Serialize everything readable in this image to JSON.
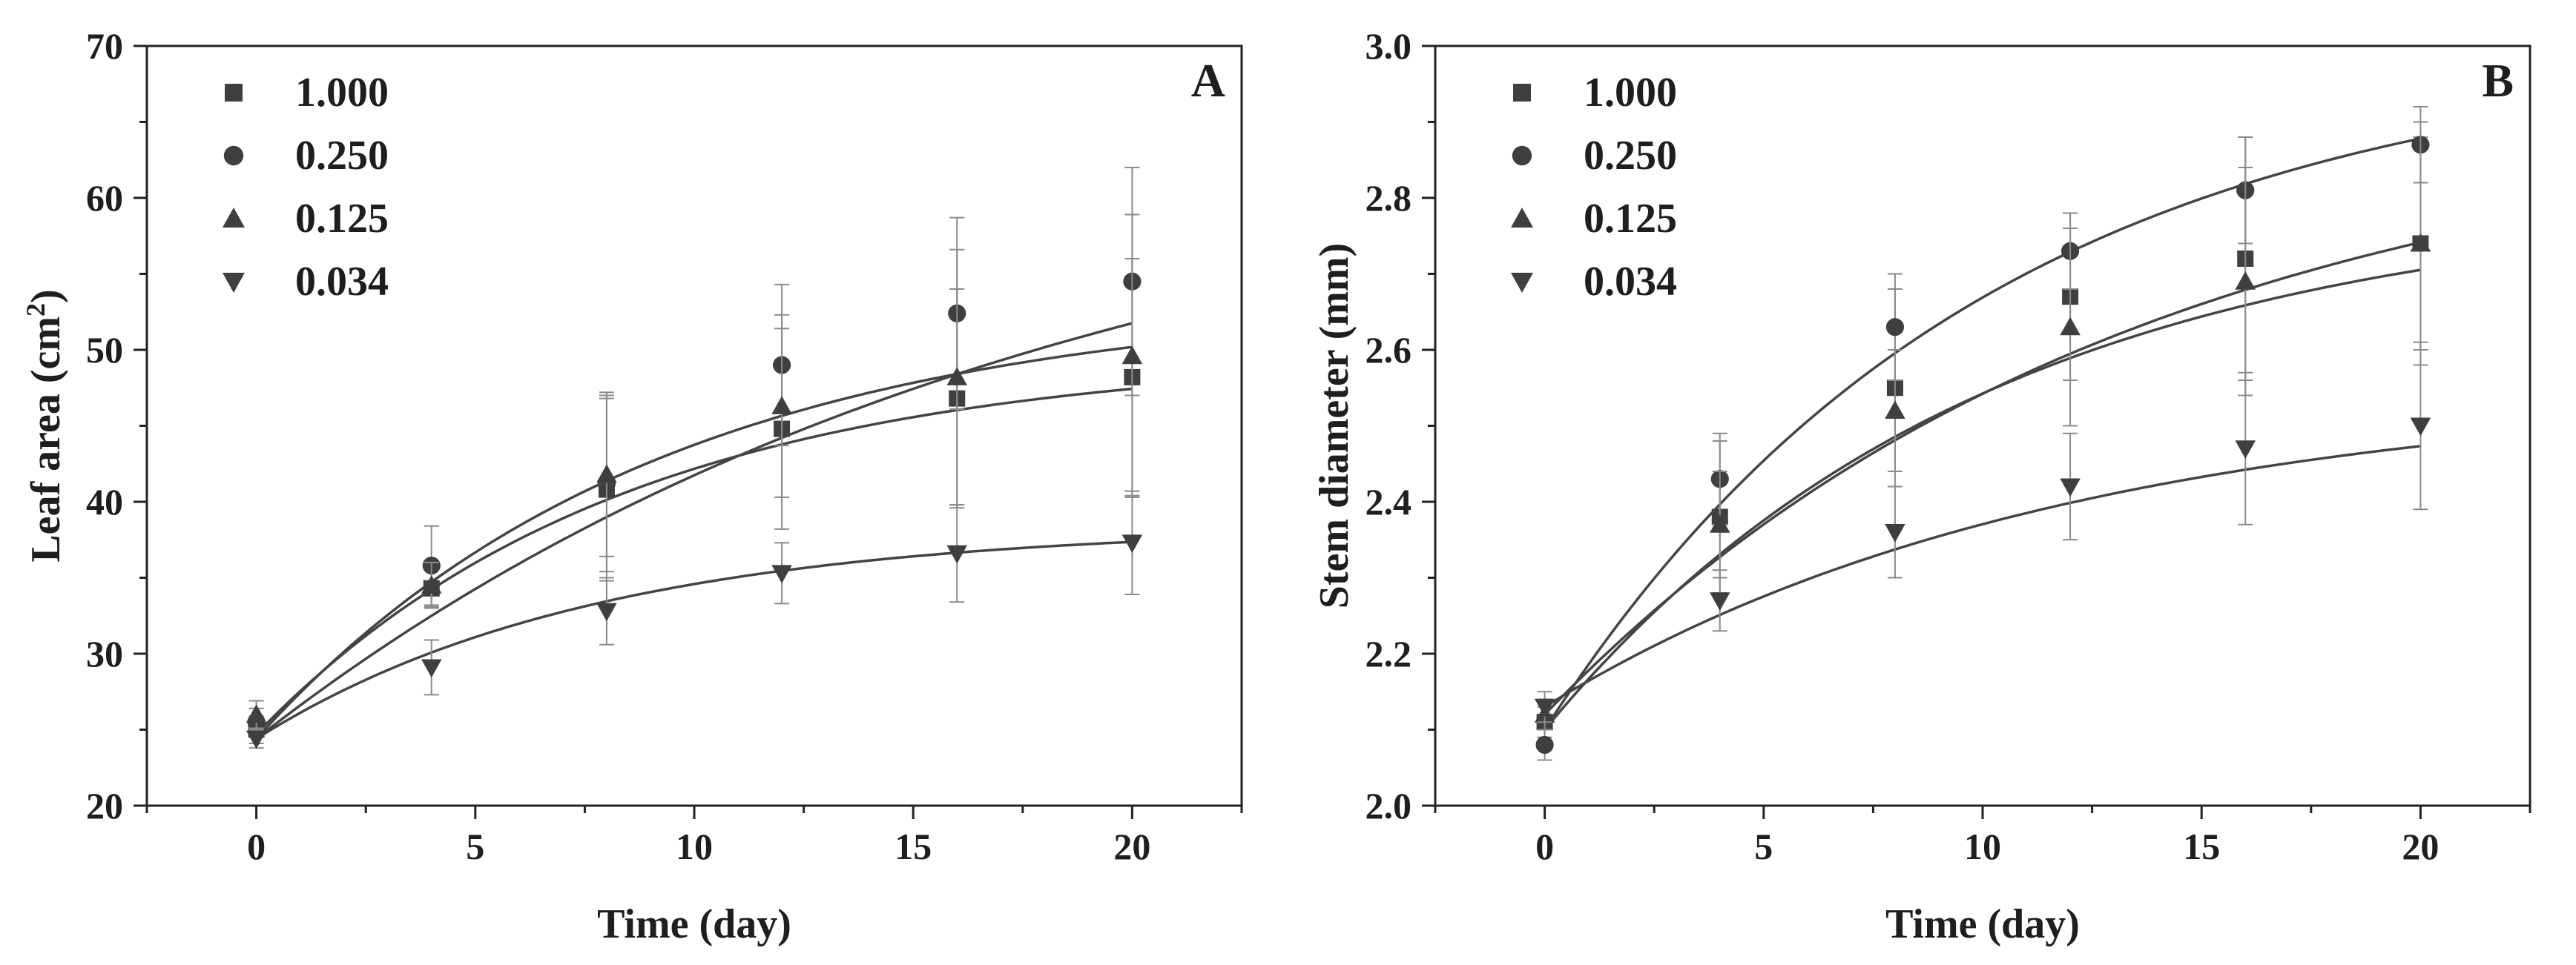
{
  "chart_data": [
    {
      "type": "scatter",
      "panel_label": "A",
      "xlabel": "Time (day)",
      "ylabel_main": "Leaf area (cm",
      "ylabel_sup": "2",
      "ylabel_end": ")",
      "xlim": [
        -2.5,
        22.5
      ],
      "ylim": [
        20,
        70
      ],
      "xticks": [
        0,
        5,
        10,
        15,
        20
      ],
      "xtick_labels": [
        "0",
        "5",
        "10",
        "15",
        "20"
      ],
      "yticks": [
        20,
        30,
        40,
        50,
        60,
        70
      ],
      "ytick_labels": [
        "20",
        "30",
        "40",
        "50",
        "60",
        "70"
      ],
      "legend_position": "top-left",
      "x": [
        0,
        4,
        8,
        12,
        16,
        20
      ],
      "series": [
        {
          "name": "1.000",
          "marker": "square",
          "values": [
            25.0,
            34.3,
            40.8,
            44.8,
            46.8,
            48.2
          ],
          "err": [
            0.9,
            1.2,
            6.0,
            6.6,
            7.2,
            7.8
          ],
          "fit": {
            "a": 24.7,
            "b": 25.0,
            "k": 0.12
          }
        },
        {
          "name": "0.250",
          "marker": "circle",
          "values": [
            25.5,
            35.8,
            41.2,
            49.0,
            52.4,
            54.5
          ],
          "err": [
            0.9,
            2.6,
            5.8,
            5.3,
            6.3,
            7.5
          ],
          "fit": {
            "a": 24.4,
            "b": 41.0,
            "k": 0.055
          }
        },
        {
          "name": "0.125",
          "marker": "triangle-up",
          "values": [
            26.0,
            34.5,
            41.8,
            46.3,
            48.2,
            49.6
          ],
          "err": [
            0.9,
            1.5,
            5.4,
            6.0,
            8.4,
            9.3
          ],
          "fit": {
            "a": 24.4,
            "b": 29.0,
            "k": 0.11
          }
        },
        {
          "name": "0.034",
          "marker": "triangle-down",
          "values": [
            24.4,
            29.1,
            32.8,
            35.3,
            36.6,
            37.3
          ],
          "err": [
            0.6,
            1.8,
            2.2,
            2.0,
            3.2,
            3.4
          ],
          "fit": {
            "a": 24.4,
            "b": 14.0,
            "k": 0.13
          }
        }
      ]
    },
    {
      "type": "scatter",
      "panel_label": "B",
      "xlabel": "Time (day)",
      "ylabel_main": "Stem diameter (mm)",
      "ylabel_sup": "",
      "ylabel_end": "",
      "xlim": [
        -2.5,
        22.5
      ],
      "ylim": [
        2.0,
        3.0
      ],
      "xticks": [
        0,
        5,
        10,
        15,
        20
      ],
      "xtick_labels": [
        "0",
        "5",
        "10",
        "15",
        "20"
      ],
      "yticks": [
        2.0,
        2.2,
        2.4,
        2.6,
        2.8,
        3.0
      ],
      "ytick_labels": [
        "2.0",
        "2.2",
        "2.4",
        "2.6",
        "2.8",
        "3.0"
      ],
      "legend_position": "top-left",
      "x": [
        0,
        4,
        8,
        12,
        16,
        20
      ],
      "series": [
        {
          "name": "1.000",
          "marker": "square",
          "values": [
            2.11,
            2.38,
            2.55,
            2.67,
            2.72,
            2.74
          ],
          "err": [
            0.02,
            0.1,
            0.13,
            0.11,
            0.16,
            0.14
          ],
          "fit": {
            "a": 2.1,
            "b": 0.7,
            "k": 0.1
          }
        },
        {
          "name": "0.250",
          "marker": "circle",
          "values": [
            2.08,
            2.43,
            2.63,
            2.73,
            2.81,
            2.87
          ],
          "err": [
            0.02,
            0.06,
            0.07,
            0.05,
            0.07,
            0.05
          ],
          "fit": {
            "a": 2.1,
            "b": 0.9,
            "k": 0.1
          }
        },
        {
          "name": "0.125",
          "marker": "triangle-up",
          "values": [
            2.12,
            2.37,
            2.52,
            2.63,
            2.69,
            2.74
          ],
          "err": [
            0.02,
            0.07,
            0.08,
            0.13,
            0.15,
            0.16
          ],
          "fit": {
            "a": 2.12,
            "b": 0.8,
            "k": 0.075
          }
        },
        {
          "name": "0.034",
          "marker": "triangle-down",
          "values": [
            2.13,
            2.27,
            2.36,
            2.42,
            2.47,
            2.5
          ],
          "err": [
            0.02,
            0.04,
            0.06,
            0.07,
            0.1,
            0.11
          ],
          "fit": {
            "a": 2.13,
            "b": 0.42,
            "k": 0.085
          }
        }
      ]
    }
  ]
}
